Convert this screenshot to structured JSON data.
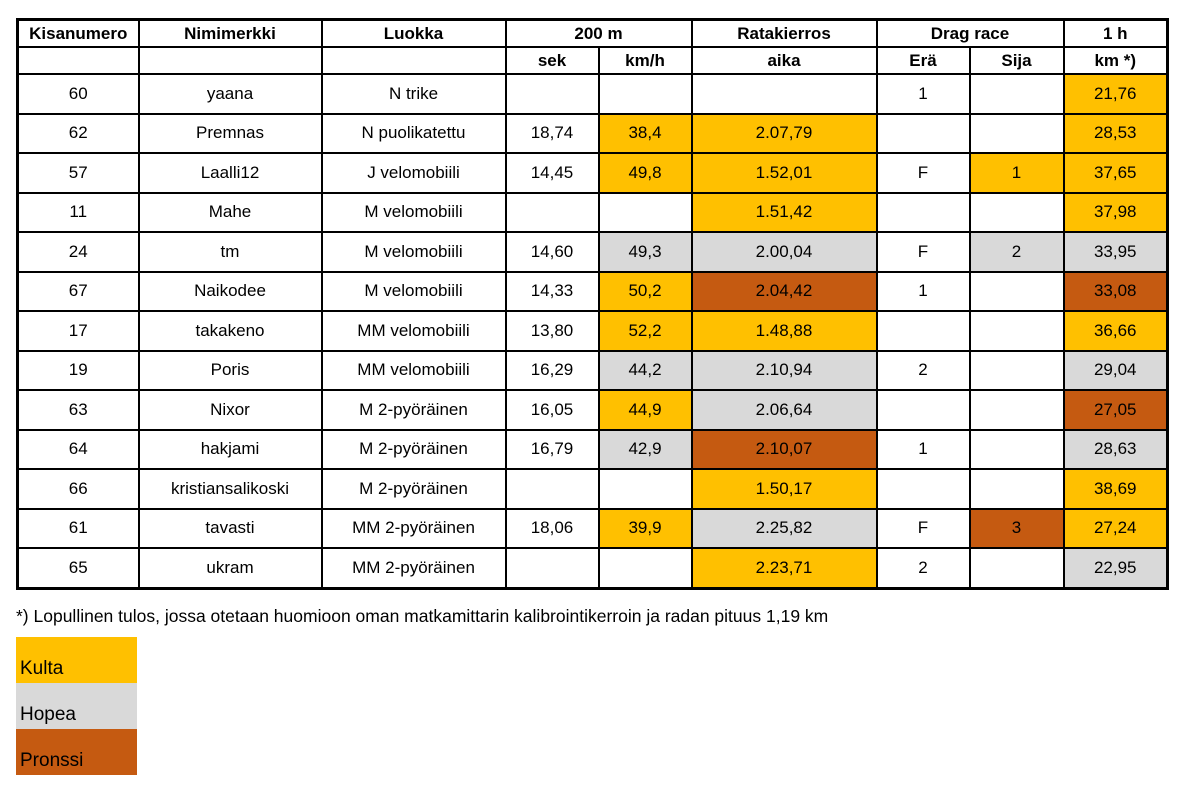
{
  "colors": {
    "gold": "#FFC000",
    "silver": "#D9D9D9",
    "bronze": "#C55A11",
    "border": "#000000"
  },
  "footnote": "*) Lopullinen tulos, jossa otetaan huomioon oman matkamittarin kalibrointikerroin ja radan pituus 1,19 km",
  "legend": {
    "items": [
      {
        "label": "Kulta",
        "color": "gold"
      },
      {
        "label": "Hopea",
        "color": "silver"
      },
      {
        "label": "Pronssi",
        "color": "bronze"
      }
    ]
  },
  "table": {
    "header_row1": [
      {
        "label": "Kisanumero",
        "colspan": 1,
        "align": "left"
      },
      {
        "label": "Nimimerkki",
        "colspan": 1,
        "align": "left"
      },
      {
        "label": "Luokka",
        "colspan": 1,
        "align": "left"
      },
      {
        "label": "200 m",
        "colspan": 2,
        "align": "center"
      },
      {
        "label": "Ratakierros",
        "colspan": 1,
        "align": "center"
      },
      {
        "label": "Drag race",
        "colspan": 2,
        "align": "center"
      },
      {
        "label": "1 h",
        "colspan": 1,
        "align": "center"
      }
    ],
    "header_row2": [
      "",
      "",
      "",
      "sek",
      "km/h",
      "aika",
      "Erä",
      "Sija",
      "km *)"
    ],
    "columns": [
      "kisanumero",
      "nimimerkki",
      "luokka",
      "200m-sek",
      "200m-kmh",
      "ratakierros-aika",
      "dragrace-era",
      "dragrace-sija",
      "1h-km"
    ],
    "rows": [
      [
        {
          "v": "60"
        },
        {
          "v": "yaana"
        },
        {
          "v": "N trike"
        },
        {},
        {},
        {},
        {
          "v": "1"
        },
        {},
        {
          "v": "21,76",
          "c": "gold"
        }
      ],
      [
        {
          "v": "62"
        },
        {
          "v": "Premnas"
        },
        {
          "v": "N puolikatettu"
        },
        {
          "v": "18,74"
        },
        {
          "v": "38,4",
          "c": "gold"
        },
        {
          "v": "2.07,79",
          "c": "gold"
        },
        {},
        {},
        {
          "v": "28,53",
          "c": "gold"
        }
      ],
      [
        {
          "v": "57"
        },
        {
          "v": "Laalli12"
        },
        {
          "v": "J velomobiili"
        },
        {
          "v": "14,45"
        },
        {
          "v": "49,8",
          "c": "gold"
        },
        {
          "v": "1.52,01",
          "c": "gold"
        },
        {
          "v": "F"
        },
        {
          "v": "1",
          "c": "gold"
        },
        {
          "v": "37,65",
          "c": "gold"
        }
      ],
      [
        {
          "v": "11"
        },
        {
          "v": "Mahe"
        },
        {
          "v": "M velomobiili"
        },
        {},
        {},
        {
          "v": "1.51,42",
          "c": "gold"
        },
        {},
        {},
        {
          "v": "37,98",
          "c": "gold"
        }
      ],
      [
        {
          "v": "24"
        },
        {
          "v": "tm"
        },
        {
          "v": "M velomobiili"
        },
        {
          "v": "14,60"
        },
        {
          "v": "49,3",
          "c": "silver"
        },
        {
          "v": "2.00,04",
          "c": "silver"
        },
        {
          "v": "F"
        },
        {
          "v": "2",
          "c": "silver"
        },
        {
          "v": "33,95",
          "c": "silver"
        }
      ],
      [
        {
          "v": "67"
        },
        {
          "v": "Naikodee"
        },
        {
          "v": "M velomobiili"
        },
        {
          "v": "14,33"
        },
        {
          "v": "50,2",
          "c": "gold"
        },
        {
          "v": "2.04,42",
          "c": "bronze"
        },
        {
          "v": "1"
        },
        {},
        {
          "v": "33,08",
          "c": "bronze"
        }
      ],
      [
        {
          "v": "17"
        },
        {
          "v": "takakeno"
        },
        {
          "v": "MM velomobiili"
        },
        {
          "v": "13,80"
        },
        {
          "v": "52,2",
          "c": "gold"
        },
        {
          "v": "1.48,88",
          "c": "gold"
        },
        {},
        {},
        {
          "v": "36,66",
          "c": "gold"
        }
      ],
      [
        {
          "v": "19"
        },
        {
          "v": "Poris"
        },
        {
          "v": "MM velomobiili"
        },
        {
          "v": "16,29"
        },
        {
          "v": "44,2",
          "c": "silver"
        },
        {
          "v": "2.10,94",
          "c": "silver"
        },
        {
          "v": "2"
        },
        {},
        {
          "v": "29,04",
          "c": "silver"
        }
      ],
      [
        {
          "v": "63"
        },
        {
          "v": "Nixor"
        },
        {
          "v": "M 2-pyöräinen"
        },
        {
          "v": "16,05"
        },
        {
          "v": "44,9",
          "c": "gold"
        },
        {
          "v": "2.06,64",
          "c": "silver"
        },
        {},
        {},
        {
          "v": "27,05",
          "c": "bronze"
        }
      ],
      [
        {
          "v": "64"
        },
        {
          "v": "hakjami"
        },
        {
          "v": "M 2-pyöräinen"
        },
        {
          "v": "16,79"
        },
        {
          "v": "42,9",
          "c": "silver"
        },
        {
          "v": "2.10,07",
          "c": "bronze"
        },
        {
          "v": "1"
        },
        {},
        {
          "v": "28,63",
          "c": "silver"
        }
      ],
      [
        {
          "v": "66"
        },
        {
          "v": "kristiansalikoski"
        },
        {
          "v": "M 2-pyöräinen"
        },
        {},
        {},
        {
          "v": "1.50,17",
          "c": "gold"
        },
        {},
        {},
        {
          "v": "38,69",
          "c": "gold"
        }
      ],
      [
        {
          "v": "61"
        },
        {
          "v": "tavasti"
        },
        {
          "v": "MM 2-pyöräinen"
        },
        {
          "v": "18,06"
        },
        {
          "v": "39,9",
          "c": "gold"
        },
        {
          "v": "2.25,82",
          "c": "silver"
        },
        {
          "v": "F"
        },
        {
          "v": "3",
          "c": "bronze"
        },
        {
          "v": "27,24",
          "c": "gold"
        }
      ],
      [
        {
          "v": "65"
        },
        {
          "v": "ukram"
        },
        {
          "v": "MM 2-pyöräinen"
        },
        {},
        {},
        {
          "v": "2.23,71",
          "c": "gold"
        },
        {
          "v": "2"
        },
        {},
        {
          "v": "22,95",
          "c": "silver"
        }
      ]
    ]
  }
}
